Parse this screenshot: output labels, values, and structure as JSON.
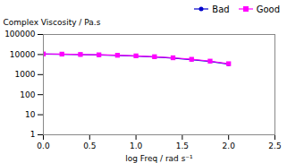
{
  "chart_data": {
    "type": "line",
    "xlabel": "log Freq / rad s⁻¹",
    "ylabel": "Complex Viscosity / Pa.s",
    "x": [
      0.0,
      0.2,
      0.4,
      0.6,
      0.8,
      1.0,
      1.2,
      1.4,
      1.6,
      1.8,
      2.0
    ],
    "series": [
      {
        "name": "Bad",
        "color": "#0000cc",
        "marker": "circle",
        "values": [
          10500,
          10300,
          9900,
          9500,
          9000,
          8400,
          7600,
          6700,
          5600,
          4500,
          3300
        ]
      },
      {
        "name": "Good",
        "color": "#ff00ff",
        "marker": "square",
        "values": [
          10700,
          10500,
          10100,
          9700,
          9200,
          8600,
          7800,
          6900,
          5800,
          4700,
          3500
        ]
      }
    ],
    "xlim": [
      0.0,
      2.5
    ],
    "ylim": [
      1,
      100000
    ],
    "xticks": [
      {
        "value": 0.0,
        "label": "0.0"
      },
      0.5,
      {
        "value": 1.0,
        "label": "1.0"
      },
      1.5,
      {
        "value": 2.0,
        "label": "2.0"
      },
      2.5
    ],
    "yticks": [
      1,
      10,
      100,
      1000,
      10000,
      100000
    ],
    "log": "y",
    "grid": false,
    "legend": "upper right"
  }
}
